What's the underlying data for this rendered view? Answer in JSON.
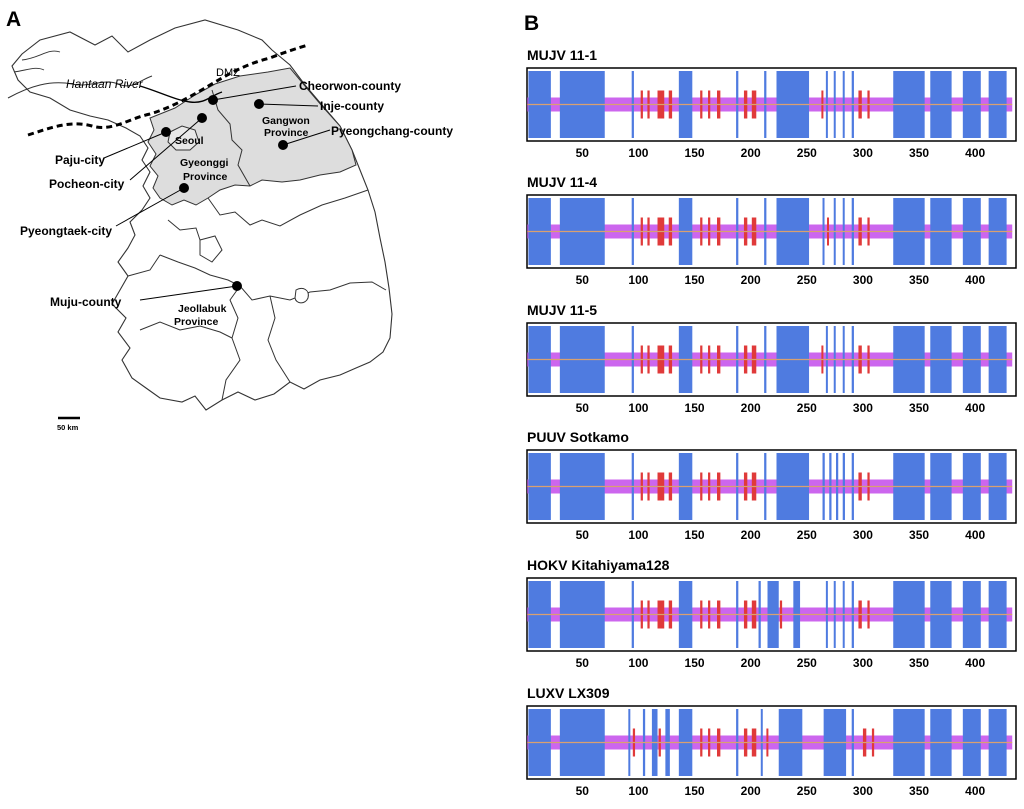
{
  "panel_a": {
    "letter": "A",
    "river_label": "Hantaan River",
    "dmz_label": "DMZ",
    "scale_label": "50 km",
    "provinces": {
      "gangwon": [
        "Gangwon",
        "Province"
      ],
      "gyeonggi": [
        "Gyeonggi",
        "Province"
      ],
      "jeollabuk": [
        "Jeollabuk",
        "Province"
      ]
    },
    "capital": "Seoul",
    "sites": [
      {
        "id": "cheorwon",
        "label": "Cheorwon-county"
      },
      {
        "id": "inje",
        "label": "Inje-county"
      },
      {
        "id": "pyeongchang",
        "label": "Pyeongchang-county"
      },
      {
        "id": "paju",
        "label": "Paju-city"
      },
      {
        "id": "pocheon",
        "label": "Pocheon-city"
      },
      {
        "id": "pyeongtaek",
        "label": "Pyeongtaek-city"
      },
      {
        "id": "muju",
        "label": "Muju-county"
      }
    ]
  },
  "chart_data": {
    "type": "heatmap",
    "panel_letter": "B",
    "description_free": true,
    "x_ticks": [
      50,
      100,
      150,
      200,
      250,
      300,
      350,
      400
    ],
    "x_range": [
      1,
      433
    ],
    "colors": {
      "helix": "#4f7be0",
      "strand": "#e03a3a",
      "coil": "#cc66ee",
      "baseline": "#d9a070"
    },
    "legend_order": [
      "helix",
      "strand",
      "coil"
    ],
    "tracks": [
      {
        "title": "MUJV 11-1",
        "helices": [
          [
            2,
            22
          ],
          [
            30,
            70
          ],
          [
            94,
            96
          ],
          [
            136,
            148
          ],
          [
            187,
            189
          ],
          [
            212,
            214
          ],
          [
            223,
            252
          ],
          [
            267,
            268
          ],
          [
            274,
            275
          ],
          [
            282,
            283
          ],
          [
            290,
            292
          ],
          [
            327,
            355
          ],
          [
            360,
            379
          ],
          [
            389,
            405
          ],
          [
            412,
            428
          ]
        ],
        "strands": [
          [
            102,
            104
          ],
          [
            108,
            110
          ],
          [
            117,
            123
          ],
          [
            127,
            130
          ],
          [
            155,
            157
          ],
          [
            162,
            164
          ],
          [
            170,
            173
          ],
          [
            194,
            197
          ],
          [
            201,
            205
          ],
          [
            263,
            264
          ],
          [
            296,
            299
          ],
          [
            304,
            306
          ]
        ]
      },
      {
        "title": "MUJV 11-4",
        "helices": [
          [
            2,
            22
          ],
          [
            30,
            70
          ],
          [
            94,
            96
          ],
          [
            136,
            148
          ],
          [
            187,
            189
          ],
          [
            212,
            214
          ],
          [
            223,
            252
          ],
          [
            264,
            265
          ],
          [
            274,
            275
          ],
          [
            282,
            283
          ],
          [
            290,
            292
          ],
          [
            327,
            355
          ],
          [
            360,
            379
          ],
          [
            389,
            405
          ],
          [
            412,
            428
          ]
        ],
        "strands": [
          [
            102,
            104
          ],
          [
            108,
            110
          ],
          [
            117,
            123
          ],
          [
            127,
            130
          ],
          [
            155,
            157
          ],
          [
            162,
            164
          ],
          [
            170,
            173
          ],
          [
            194,
            197
          ],
          [
            201,
            205
          ],
          [
            268,
            269
          ],
          [
            296,
            299
          ],
          [
            304,
            306
          ]
        ]
      },
      {
        "title": "MUJV 11-5",
        "helices": [
          [
            2,
            22
          ],
          [
            30,
            70
          ],
          [
            94,
            96
          ],
          [
            136,
            148
          ],
          [
            187,
            189
          ],
          [
            212,
            214
          ],
          [
            223,
            252
          ],
          [
            267,
            268
          ],
          [
            274,
            275
          ],
          [
            282,
            283
          ],
          [
            290,
            292
          ],
          [
            327,
            355
          ],
          [
            360,
            379
          ],
          [
            389,
            405
          ],
          [
            412,
            428
          ]
        ],
        "strands": [
          [
            102,
            104
          ],
          [
            108,
            110
          ],
          [
            117,
            123
          ],
          [
            127,
            130
          ],
          [
            155,
            157
          ],
          [
            162,
            164
          ],
          [
            170,
            173
          ],
          [
            194,
            197
          ],
          [
            201,
            205
          ],
          [
            263,
            264
          ],
          [
            296,
            299
          ],
          [
            304,
            306
          ]
        ]
      },
      {
        "title": "PUUV Sotkamo",
        "helices": [
          [
            2,
            22
          ],
          [
            30,
            70
          ],
          [
            94,
            96
          ],
          [
            136,
            148
          ],
          [
            187,
            189
          ],
          [
            212,
            214
          ],
          [
            223,
            252
          ],
          [
            264,
            266
          ],
          [
            270,
            272
          ],
          [
            276,
            278
          ],
          [
            282,
            284
          ],
          [
            290,
            292
          ],
          [
            327,
            355
          ],
          [
            360,
            379
          ],
          [
            389,
            405
          ],
          [
            412,
            428
          ]
        ],
        "strands": [
          [
            102,
            104
          ],
          [
            108,
            110
          ],
          [
            117,
            123
          ],
          [
            127,
            130
          ],
          [
            155,
            157
          ],
          [
            162,
            164
          ],
          [
            170,
            173
          ],
          [
            194,
            197
          ],
          [
            201,
            205
          ],
          [
            296,
            299
          ],
          [
            304,
            306
          ]
        ]
      },
      {
        "title": "HOKV Kitahiyama128",
        "helices": [
          [
            2,
            22
          ],
          [
            30,
            70
          ],
          [
            94,
            96
          ],
          [
            136,
            148
          ],
          [
            187,
            189
          ],
          [
            207,
            209
          ],
          [
            215,
            225
          ],
          [
            238,
            244
          ],
          [
            267,
            268
          ],
          [
            274,
            275
          ],
          [
            282,
            283
          ],
          [
            290,
            292
          ],
          [
            327,
            355
          ],
          [
            360,
            379
          ],
          [
            389,
            405
          ],
          [
            412,
            428
          ]
        ],
        "strands": [
          [
            102,
            104
          ],
          [
            108,
            110
          ],
          [
            117,
            123
          ],
          [
            127,
            130
          ],
          [
            155,
            157
          ],
          [
            162,
            164
          ],
          [
            170,
            173
          ],
          [
            194,
            197
          ],
          [
            201,
            205
          ],
          [
            226,
            228
          ],
          [
            296,
            299
          ],
          [
            304,
            306
          ]
        ]
      },
      {
        "title": "LUXV LX309",
        "helices": [
          [
            2,
            22
          ],
          [
            30,
            70
          ],
          [
            91,
            92
          ],
          [
            104,
            106
          ],
          [
            112,
            117
          ],
          [
            124,
            128
          ],
          [
            136,
            148
          ],
          [
            187,
            189
          ],
          [
            209,
            210
          ],
          [
            225,
            246
          ],
          [
            265,
            285
          ],
          [
            290,
            292
          ],
          [
            327,
            355
          ],
          [
            360,
            379
          ],
          [
            389,
            405
          ],
          [
            412,
            428
          ]
        ],
        "strands": [
          [
            95,
            97
          ],
          [
            118,
            120
          ],
          [
            155,
            157
          ],
          [
            162,
            164
          ],
          [
            170,
            173
          ],
          [
            194,
            197
          ],
          [
            201,
            205
          ],
          [
            214,
            215
          ],
          [
            300,
            303
          ],
          [
            308,
            310
          ],
          [
            375,
            377
          ]
        ]
      }
    ]
  }
}
